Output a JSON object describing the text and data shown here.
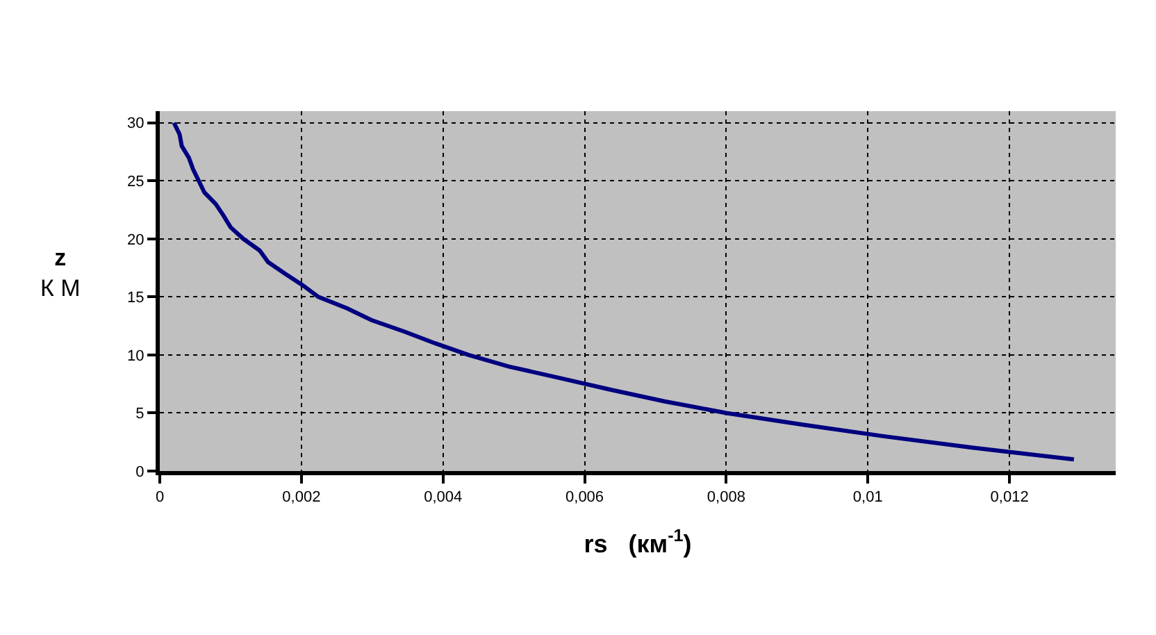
{
  "chart_data": {
    "type": "line",
    "xlabel": "rs   (км$^{-1}$)",
    "ylabel": "z\nК М",
    "x": [
      0.0002,
      0.00028,
      0.00031,
      0.00041,
      0.00047,
      0.00055,
      0.00063,
      0.00079,
      0.0009,
      0.001,
      0.00118,
      0.00141,
      0.00153,
      0.00177,
      0.00202,
      0.00224,
      0.00265,
      0.00299,
      0.00346,
      0.00389,
      0.00436,
      0.00493,
      0.00566,
      0.00637,
      0.00713,
      0.008,
      0.00908,
      0.01022,
      0.01149,
      0.01291
    ],
    "series": [
      {
        "color": "#000080",
        "values": [
          30,
          29,
          28,
          27,
          26,
          25,
          24,
          23,
          22,
          21,
          20,
          19,
          18,
          17,
          16,
          15,
          14,
          13,
          12,
          11,
          10,
          9,
          8,
          7,
          6,
          5,
          4,
          3,
          2,
          1
        ]
      }
    ],
    "xlim": [
      0,
      0.0135
    ],
    "xticks": [
      0,
      {
        "value": 0.002,
        "label": "0,002"
      },
      {
        "value": 0.004,
        "label": "0,004"
      },
      {
        "value": 0.006,
        "label": "0,006"
      },
      {
        "value": 0.008,
        "label": "0,008"
      },
      {
        "value": 0.01,
        "label": "0,01"
      },
      {
        "value": 0.012,
        "label": "0,012"
      }
    ],
    "ylim": [
      0,
      31
    ],
    "yticks": [
      0,
      5,
      10,
      15,
      20,
      25,
      30
    ],
    "grid": true,
    "marker": "none",
    "line_style": "solid"
  }
}
